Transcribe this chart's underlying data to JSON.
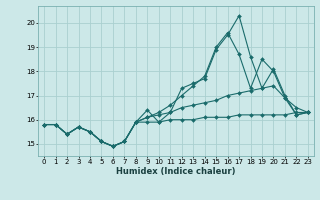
{
  "xlabel": "Humidex (Indice chaleur)",
  "bg_color": "#cce8e8",
  "grid_color": "#aad0d0",
  "line_color": "#1a6b6b",
  "xlim": [
    -0.5,
    23.5
  ],
  "ylim": [
    14.5,
    20.7
  ],
  "xticks": [
    0,
    1,
    2,
    3,
    4,
    5,
    6,
    7,
    8,
    9,
    10,
    11,
    12,
    13,
    14,
    15,
    16,
    17,
    18,
    19,
    20,
    21,
    22,
    23
  ],
  "yticks": [
    15,
    16,
    17,
    18,
    19,
    20
  ],
  "series": [
    [
      15.8,
      15.8,
      15.4,
      15.7,
      15.5,
      15.1,
      14.9,
      15.1,
      15.9,
      16.4,
      15.9,
      16.3,
      17.3,
      17.5,
      17.7,
      18.9,
      19.5,
      20.3,
      18.6,
      17.3,
      18.1,
      17.0,
      16.2,
      16.3
    ],
    [
      15.8,
      15.8,
      15.4,
      15.7,
      15.5,
      15.1,
      14.9,
      15.1,
      15.9,
      16.1,
      16.3,
      16.6,
      17.0,
      17.4,
      17.8,
      19.0,
      19.6,
      18.7,
      17.3,
      18.5,
      18.0,
      16.9,
      16.2,
      16.3
    ],
    [
      15.8,
      15.8,
      15.4,
      15.7,
      15.5,
      15.1,
      14.9,
      15.1,
      15.9,
      16.1,
      16.2,
      16.3,
      16.5,
      16.6,
      16.7,
      16.8,
      17.0,
      17.1,
      17.2,
      17.3,
      17.4,
      16.9,
      16.5,
      16.3
    ],
    [
      15.8,
      15.8,
      15.4,
      15.7,
      15.5,
      15.1,
      14.9,
      15.1,
      15.9,
      15.9,
      15.9,
      16.0,
      16.0,
      16.0,
      16.1,
      16.1,
      16.1,
      16.2,
      16.2,
      16.2,
      16.2,
      16.2,
      16.3,
      16.3
    ]
  ]
}
